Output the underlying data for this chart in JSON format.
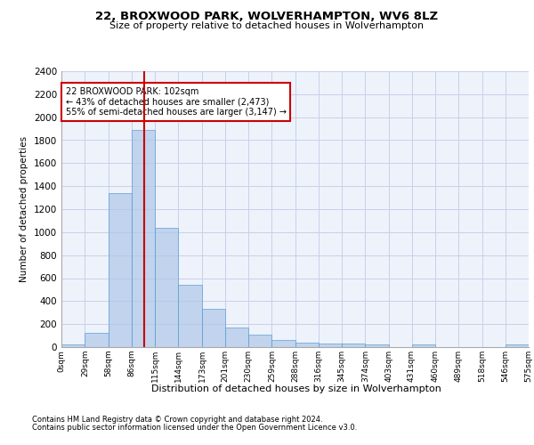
{
  "title1": "22, BROXWOOD PARK, WOLVERHAMPTON, WV6 8LZ",
  "title2": "Size of property relative to detached houses in Wolverhampton",
  "xlabel": "Distribution of detached houses by size in Wolverhampton",
  "ylabel": "Number of detached properties",
  "bin_edges": [
    0,
    29,
    58,
    86,
    115,
    144,
    173,
    201,
    230,
    259,
    288,
    316,
    345,
    374,
    403,
    431,
    460,
    489,
    518,
    546,
    575
  ],
  "bar_heights": [
    20,
    125,
    1340,
    1890,
    1040,
    545,
    335,
    170,
    105,
    65,
    40,
    30,
    30,
    20,
    0,
    20,
    0,
    0,
    0,
    20
  ],
  "bar_color": "#aec6e8",
  "bar_edge_color": "#5a9fd4",
  "bar_alpha": 0.7,
  "vline_x": 102,
  "vline_color": "#cc0000",
  "annotation_text": "22 BROXWOOD PARK: 102sqm\n← 43% of detached houses are smaller (2,473)\n55% of semi-detached houses are larger (3,147) →",
  "annotation_box_color": "#cc0000",
  "ylim": [
    0,
    2400
  ],
  "yticks": [
    0,
    200,
    400,
    600,
    800,
    1000,
    1200,
    1400,
    1600,
    1800,
    2000,
    2200,
    2400
  ],
  "tick_labels": [
    "0sqm",
    "29sqm",
    "58sqm",
    "86sqm",
    "115sqm",
    "144sqm",
    "173sqm",
    "201sqm",
    "230sqm",
    "259sqm",
    "288sqm",
    "316sqm",
    "345sqm",
    "374sqm",
    "403sqm",
    "431sqm",
    "460sqm",
    "489sqm",
    "518sqm",
    "546sqm",
    "575sqm"
  ],
  "footer1": "Contains HM Land Registry data © Crown copyright and database right 2024.",
  "footer2": "Contains public sector information licensed under the Open Government Licence v3.0.",
  "bg_color": "#eef2fb",
  "grid_color": "#c8d0e8"
}
